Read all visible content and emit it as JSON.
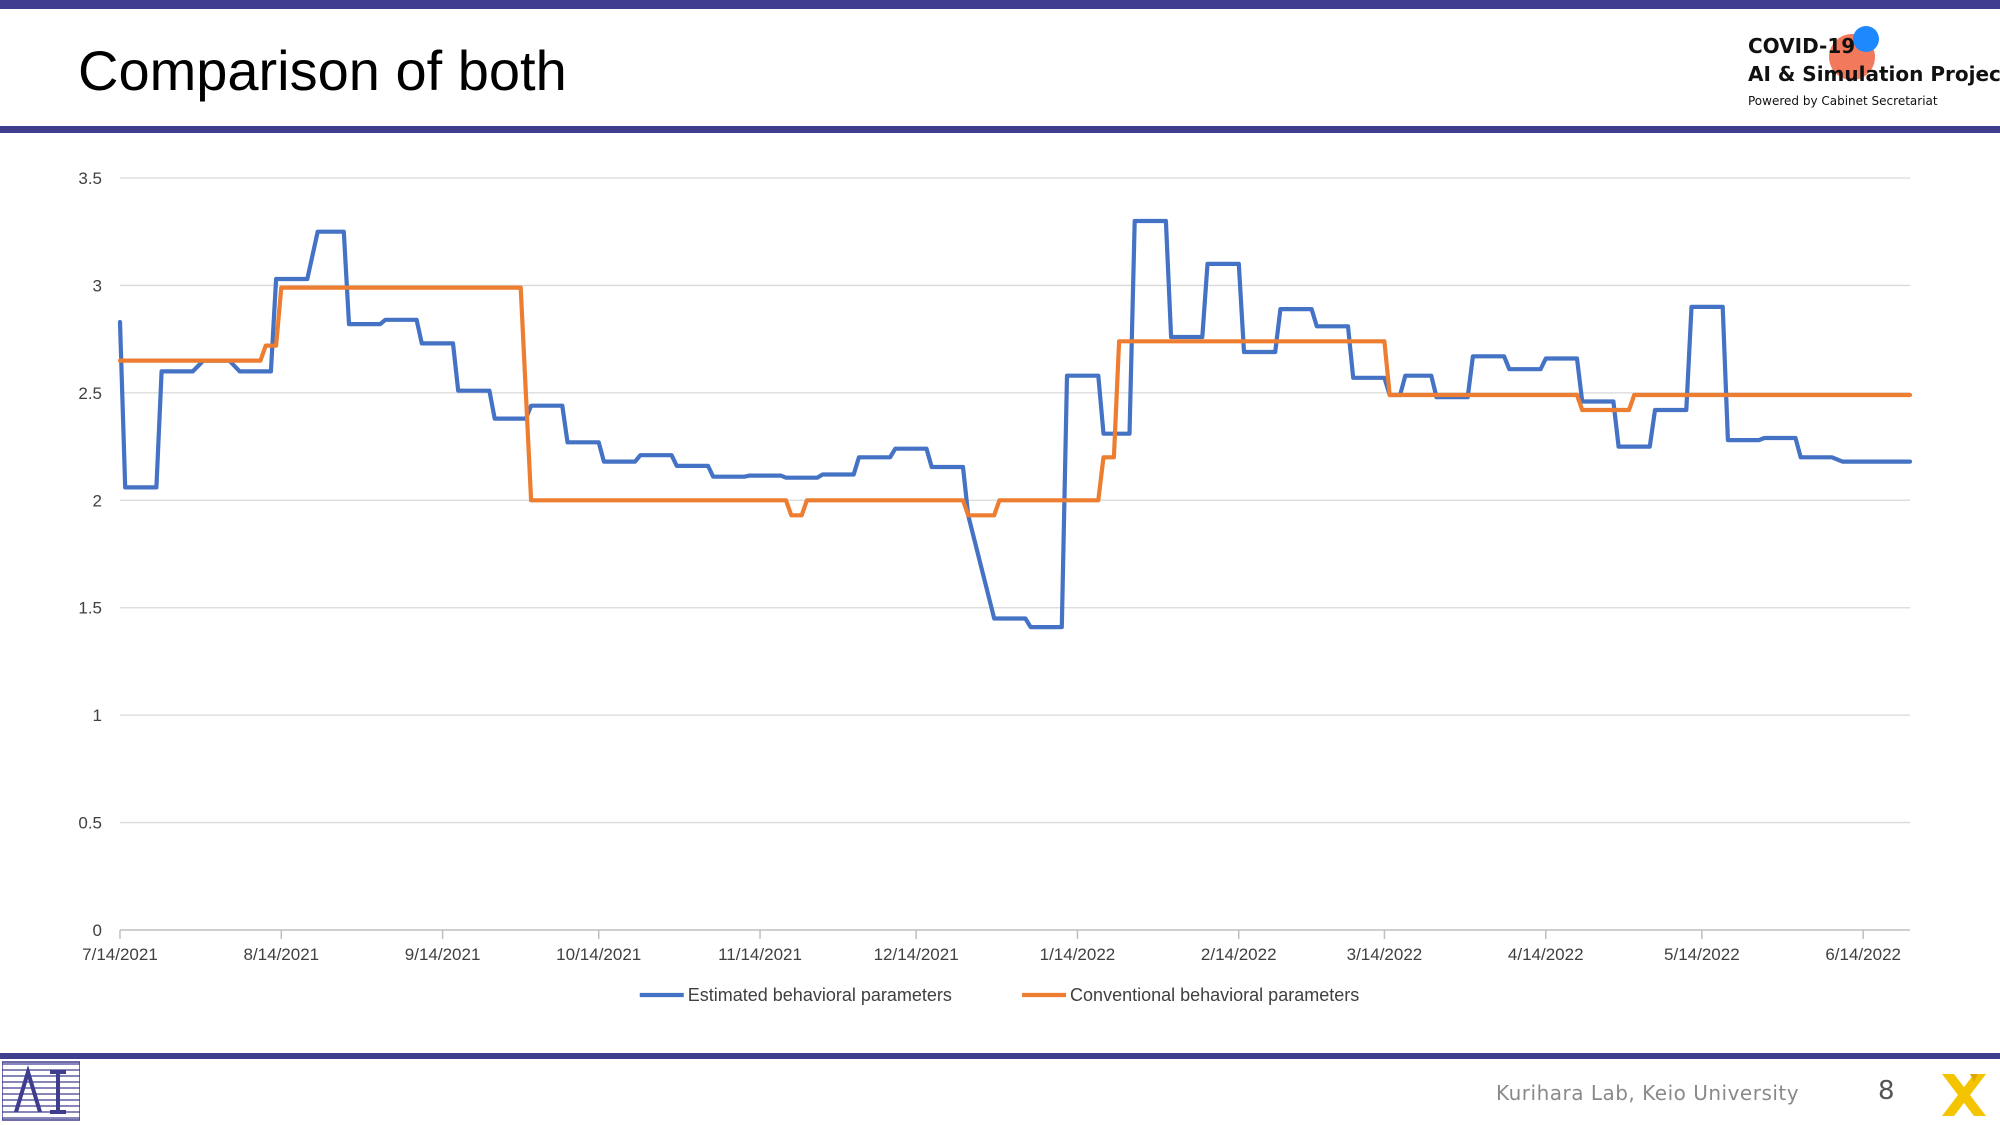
{
  "slide": {
    "title": "Comparison of both",
    "footer": "Kurihara Lab, Keio University",
    "page_number": "8"
  },
  "logo": {
    "line1": "COVID-19",
    "line2": "AI & Simulation Project",
    "line3": "Powered by Cabinet Secretariat"
  },
  "colors": {
    "accent_bar": "#3f3d8e",
    "series_estimated": "#4472c4",
    "series_conventional": "#ed7d31",
    "grid": "#d9d9d9"
  },
  "chart_data": {
    "type": "line",
    "title": "",
    "xlabel": "",
    "ylabel": "",
    "ylim": [
      0,
      3.5
    ],
    "yticks": [
      "0",
      "0.5",
      "1",
      "1.5",
      "2",
      "2.5",
      "3",
      "3.5"
    ],
    "xticks": [
      "7/14/2021",
      "8/14/2021",
      "9/14/2021",
      "10/14/2021",
      "11/14/2021",
      "12/14/2021",
      "1/14/2022",
      "2/14/2022",
      "3/14/2022",
      "4/14/2022",
      "5/14/2022",
      "6/14/2022"
    ],
    "xrange": [
      "2021-07-14",
      "2022-06-23"
    ],
    "grid": true,
    "legend": "bottom",
    "series": [
      {
        "name": "Estimated behavioral parameters",
        "color": "#4472c4",
        "points": [
          [
            "2021-07-14",
            2.83
          ],
          [
            "2021-07-15",
            2.06
          ],
          [
            "2021-07-21",
            2.06
          ],
          [
            "2021-07-22",
            2.6
          ],
          [
            "2021-07-28",
            2.6
          ],
          [
            "2021-07-30",
            2.65
          ],
          [
            "2021-08-04",
            2.65
          ],
          [
            "2021-08-06",
            2.6
          ],
          [
            "2021-08-12",
            2.6
          ],
          [
            "2021-08-13",
            3.03
          ],
          [
            "2021-08-19",
            3.03
          ],
          [
            "2021-08-21",
            3.25
          ],
          [
            "2021-08-26",
            3.25
          ],
          [
            "2021-08-27",
            2.82
          ],
          [
            "2021-09-02",
            2.82
          ],
          [
            "2021-09-03",
            2.84
          ],
          [
            "2021-09-09",
            2.84
          ],
          [
            "2021-09-10",
            2.73
          ],
          [
            "2021-09-16",
            2.73
          ],
          [
            "2021-09-17",
            2.51
          ],
          [
            "2021-09-23",
            2.51
          ],
          [
            "2021-09-24",
            2.38
          ],
          [
            "2021-09-30",
            2.38
          ],
          [
            "2021-10-01",
            2.44
          ],
          [
            "2021-10-07",
            2.44
          ],
          [
            "2021-10-08",
            2.27
          ],
          [
            "2021-10-14",
            2.27
          ],
          [
            "2021-10-15",
            2.18
          ],
          [
            "2021-10-21",
            2.18
          ],
          [
            "2021-10-22",
            2.21
          ],
          [
            "2021-10-28",
            2.21
          ],
          [
            "2021-10-29",
            2.16
          ],
          [
            "2021-11-04",
            2.16
          ],
          [
            "2021-11-05",
            2.11
          ],
          [
            "2021-11-11",
            2.11
          ],
          [
            "2021-11-12",
            2.115
          ],
          [
            "2021-11-18",
            2.115
          ],
          [
            "2021-11-19",
            2.105
          ],
          [
            "2021-11-25",
            2.105
          ],
          [
            "2021-11-26",
            2.12
          ],
          [
            "2021-12-02",
            2.12
          ],
          [
            "2021-12-03",
            2.2
          ],
          [
            "2021-12-09",
            2.2
          ],
          [
            "2021-12-10",
            2.24
          ],
          [
            "2021-12-16",
            2.24
          ],
          [
            "2021-12-17",
            2.155
          ],
          [
            "2021-12-23",
            2.155
          ],
          [
            "2021-12-24",
            1.93
          ],
          [
            "2021-12-29",
            1.45
          ],
          [
            "2022-01-04",
            1.45
          ],
          [
            "2022-01-05",
            1.41
          ],
          [
            "2022-01-11",
            1.41
          ],
          [
            "2022-01-12",
            2.58
          ],
          [
            "2022-01-18",
            2.58
          ],
          [
            "2022-01-19",
            2.31
          ],
          [
            "2022-01-24",
            2.31
          ],
          [
            "2022-01-25",
            3.3
          ],
          [
            "2022-01-31",
            3.3
          ],
          [
            "2022-02-01",
            2.76
          ],
          [
            "2022-02-07",
            2.76
          ],
          [
            "2022-02-08",
            3.1
          ],
          [
            "2022-02-14",
            3.1
          ],
          [
            "2022-02-15",
            2.69
          ],
          [
            "2022-02-21",
            2.69
          ],
          [
            "2022-02-22",
            2.89
          ],
          [
            "2022-02-28",
            2.89
          ],
          [
            "2022-03-01",
            2.81
          ],
          [
            "2022-03-07",
            2.81
          ],
          [
            "2022-03-08",
            2.57
          ],
          [
            "2022-03-14",
            2.57
          ],
          [
            "2022-03-15",
            2.49
          ],
          [
            "2022-03-17",
            2.49
          ],
          [
            "2022-03-18",
            2.58
          ],
          [
            "2022-03-23",
            2.58
          ],
          [
            "2022-03-24",
            2.48
          ],
          [
            "2022-03-30",
            2.48
          ],
          [
            "2022-03-31",
            2.67
          ],
          [
            "2022-04-06",
            2.67
          ],
          [
            "2022-04-07",
            2.61
          ],
          [
            "2022-04-13",
            2.61
          ],
          [
            "2022-04-14",
            2.66
          ],
          [
            "2022-04-20",
            2.66
          ],
          [
            "2022-04-21",
            2.46
          ],
          [
            "2022-04-27",
            2.46
          ],
          [
            "2022-04-28",
            2.25
          ],
          [
            "2022-05-04",
            2.25
          ],
          [
            "2022-05-05",
            2.42
          ],
          [
            "2022-05-11",
            2.42
          ],
          [
            "2022-05-12",
            2.9
          ],
          [
            "2022-05-18",
            2.9
          ],
          [
            "2022-05-19",
            2.28
          ],
          [
            "2022-05-25",
            2.28
          ],
          [
            "2022-05-26",
            2.29
          ],
          [
            "2022-06-01",
            2.29
          ],
          [
            "2022-06-02",
            2.2
          ],
          [
            "2022-06-08",
            2.2
          ],
          [
            "2022-06-10",
            2.18
          ],
          [
            "2022-06-23",
            2.18
          ]
        ]
      },
      {
        "name": "Conventional behavioral parameters",
        "color": "#ed7d31",
        "points": [
          [
            "2021-07-14",
            2.65
          ],
          [
            "2021-08-10",
            2.65
          ],
          [
            "2021-08-11",
            2.72
          ],
          [
            "2021-08-13",
            2.72
          ],
          [
            "2021-08-14",
            2.99
          ],
          [
            "2021-09-29",
            2.99
          ],
          [
            "2021-10-01",
            2.0
          ],
          [
            "2021-11-19",
            2.0
          ],
          [
            "2021-11-20",
            1.93
          ],
          [
            "2021-11-22",
            1.93
          ],
          [
            "2021-11-23",
            2.0
          ],
          [
            "2021-12-23",
            2.0
          ],
          [
            "2021-12-24",
            1.93
          ],
          [
            "2021-12-29",
            1.93
          ],
          [
            "2021-12-30",
            2.0
          ],
          [
            "2022-01-18",
            2.0
          ],
          [
            "2022-01-19",
            2.2
          ],
          [
            "2022-01-21",
            2.2
          ],
          [
            "2022-01-22",
            2.74
          ],
          [
            "2022-03-14",
            2.74
          ],
          [
            "2022-03-15",
            2.49
          ],
          [
            "2022-04-20",
            2.49
          ],
          [
            "2022-04-21",
            2.42
          ],
          [
            "2022-04-30",
            2.42
          ],
          [
            "2022-05-01",
            2.49
          ],
          [
            "2022-06-23",
            2.49
          ]
        ]
      }
    ]
  }
}
